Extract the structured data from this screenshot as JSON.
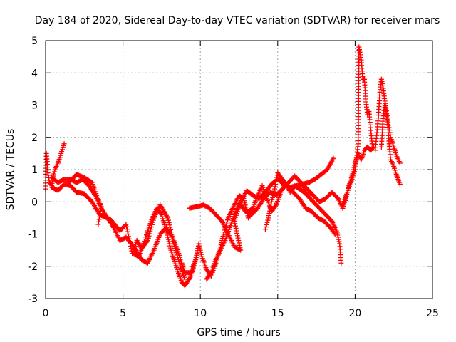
{
  "chart_data": {
    "type": "scatter",
    "title": "Day 184 of 2020, Sidereal Day-to-day VTEC variation (SDTVAR) for receiver mars",
    "xlabel": "GPS time / hours",
    "ylabel": "SDTVAR / TECUs",
    "xlim": [
      0,
      25
    ],
    "ylim": [
      -3,
      5
    ],
    "xticks": [
      "0",
      "5",
      "10",
      "15",
      "20",
      "25"
    ],
    "yticks": [
      "-3",
      "-2",
      "-1",
      "0",
      "1",
      "2",
      "3",
      "4",
      "5"
    ],
    "grid": true,
    "marker": "+",
    "color": "#ff0000",
    "series": [
      {
        "name": "mars",
        "tracks": [
          [
            [
              0.0,
              0.4
            ],
            [
              0.05,
              1.5
            ],
            [
              0.1,
              1.25
            ],
            [
              0.15,
              0.9
            ],
            [
              0.25,
              0.6
            ],
            [
              0.4,
              0.5
            ],
            [
              0.5,
              0.8
            ],
            [
              0.6,
              1.0
            ],
            [
              0.8,
              1.2
            ],
            [
              1.0,
              1.5
            ],
            [
              1.2,
              1.8
            ]
          ],
          [
            [
              0.4,
              0.45
            ],
            [
              0.8,
              0.35
            ],
            [
              1.2,
              0.55
            ],
            [
              1.6,
              0.5
            ],
            [
              2.0,
              0.3
            ],
            [
              2.5,
              0.25
            ],
            [
              3.0,
              0.0
            ],
            [
              3.5,
              -0.4
            ],
            [
              4.2,
              -0.55
            ],
            [
              4.8,
              -0.9
            ],
            [
              5.2,
              -0.7
            ],
            [
              5.6,
              -1.6
            ],
            [
              5.9,
              -1.2
            ],
            [
              6.2,
              -1.45
            ],
            [
              6.6,
              -1.2
            ],
            [
              7.0,
              -0.5
            ],
            [
              7.4,
              -0.1
            ],
            [
              7.9,
              -0.5
            ],
            [
              8.3,
              -1.3
            ],
            [
              8.7,
              -2.0
            ],
            [
              9.0,
              -2.4
            ]
          ],
          [
            [
              0.4,
              0.75
            ],
            [
              0.8,
              0.6
            ],
            [
              1.2,
              0.7
            ],
            [
              1.6,
              0.7
            ],
            [
              2.0,
              0.6
            ],
            [
              2.4,
              0.7
            ],
            [
              2.8,
              0.5
            ],
            [
              3.2,
              0.2
            ],
            [
              3.6,
              -0.2
            ],
            [
              4.0,
              -0.5
            ],
            [
              4.4,
              -0.8
            ],
            [
              4.8,
              -1.2
            ],
            [
              5.2,
              -1.1
            ],
            [
              5.7,
              -1.4
            ],
            [
              6.2,
              -1.8
            ],
            [
              6.6,
              -1.9
            ],
            [
              7.0,
              -1.5
            ],
            [
              7.4,
              -1.0
            ],
            [
              7.8,
              -0.8
            ],
            [
              8.2,
              -1.1
            ],
            [
              8.6,
              -1.6
            ],
            [
              9.0,
              -2.2
            ],
            [
              9.4,
              -2.2
            ],
            [
              9.8,
              -1.6
            ]
          ],
          [
            [
              1.5,
              0.6
            ],
            [
              2.0,
              0.85
            ],
            [
              2.5,
              0.75
            ],
            [
              3.0,
              0.6
            ],
            [
              3.3,
              0.2
            ],
            [
              3.6,
              -0.15
            ],
            [
              3.4,
              -0.7
            ]
          ],
          [
            [
              5.7,
              -1.6
            ],
            [
              6.0,
              -1.7
            ],
            [
              6.3,
              -1.35
            ],
            [
              6.6,
              -0.9
            ],
            [
              6.9,
              -0.5
            ],
            [
              7.2,
              -0.2
            ],
            [
              7.5,
              -0.4
            ],
            [
              7.8,
              -0.9
            ],
            [
              8.1,
              -1.5
            ],
            [
              8.5,
              -2.1
            ],
            [
              8.8,
              -2.5
            ],
            [
              9.0,
              -2.6
            ],
            [
              9.4,
              -2.3
            ],
            [
              9.7,
              -1.8
            ],
            [
              9.9,
              -1.3
            ],
            [
              10.1,
              -1.7
            ],
            [
              10.4,
              -2.1
            ],
            [
              10.7,
              -2.3
            ],
            [
              11.0,
              -1.9
            ],
            [
              11.3,
              -1.4
            ],
            [
              11.5,
              -1.0
            ],
            [
              11.8,
              -0.5
            ],
            [
              12.2,
              -0.1
            ],
            [
              12.5,
              0.2
            ],
            [
              12.8,
              0.1
            ],
            [
              13.1,
              -0.5
            ],
            [
              13.4,
              -0.3
            ]
          ],
          [
            [
              9.3,
              -0.2
            ],
            [
              9.8,
              -0.15
            ],
            [
              10.2,
              -0.1
            ],
            [
              10.6,
              -0.2
            ],
            [
              11.0,
              -0.4
            ],
            [
              11.4,
              -0.6
            ],
            [
              11.8,
              -1.0
            ],
            [
              12.2,
              -1.4
            ],
            [
              12.6,
              -1.5
            ],
            [
              12.2,
              -0.6
            ],
            [
              12.6,
              0.0
            ],
            [
              13.0,
              0.35
            ],
            [
              13.4,
              0.2
            ],
            [
              13.8,
              0.1
            ],
            [
              14.2,
              0.3
            ],
            [
              14.6,
              0.55
            ],
            [
              15.0,
              0.7
            ],
            [
              15.4,
              0.55
            ],
            [
              15.8,
              0.45
            ],
            [
              16.2,
              0.5
            ],
            [
              16.6,
              0.55
            ],
            [
              17.0,
              0.6
            ],
            [
              17.4,
              0.7
            ],
            [
              17.8,
              0.85
            ],
            [
              18.2,
              1.0
            ],
            [
              18.6,
              1.35
            ]
          ],
          [
            [
              10.4,
              -2.4
            ],
            [
              10.7,
              -2.2
            ],
            [
              11.0,
              -1.8
            ],
            [
              11.3,
              -1.5
            ],
            [
              11.6,
              -1.2
            ],
            [
              11.9,
              -0.8
            ],
            [
              12.2,
              -0.4
            ],
            [
              12.5,
              -0.1
            ],
            [
              12.8,
              -0.2
            ],
            [
              13.1,
              -0.3
            ],
            [
              13.4,
              -0.2
            ],
            [
              13.7,
              0.2
            ],
            [
              14.0,
              0.5
            ],
            [
              14.3,
              0.1
            ],
            [
              14.6,
              -0.3
            ],
            [
              14.9,
              -0.1
            ],
            [
              15.2,
              0.3
            ],
            [
              15.5,
              0.6
            ],
            [
              15.8,
              0.3
            ],
            [
              16.1,
              0.5
            ],
            [
              16.4,
              0.4
            ],
            [
              16.7,
              0.3
            ],
            [
              17.0,
              0.2
            ]
          ],
          [
            [
              12.5,
              0.0
            ],
            [
              12.9,
              -0.3
            ],
            [
              13.3,
              -0.4
            ],
            [
              13.7,
              -0.2
            ],
            [
              14.1,
              0.1
            ],
            [
              14.5,
              0.3
            ],
            [
              14.9,
              0.2
            ],
            [
              15.3,
              0.4
            ],
            [
              15.7,
              0.6
            ],
            [
              16.1,
              0.8
            ],
            [
              16.5,
              0.6
            ],
            [
              16.9,
              0.2
            ],
            [
              17.3,
              0.0
            ],
            [
              17.7,
              -0.2
            ],
            [
              18.1,
              -0.4
            ],
            [
              18.5,
              -0.6
            ],
            [
              18.8,
              -0.9
            ],
            [
              19.0,
              -1.3
            ],
            [
              19.1,
              -1.9
            ]
          ],
          [
            [
              14.2,
              -0.85
            ],
            [
              14.4,
              -0.5
            ],
            [
              14.6,
              0.0
            ],
            [
              14.8,
              0.4
            ],
            [
              15.0,
              0.9
            ],
            [
              15.3,
              0.7
            ],
            [
              15.6,
              0.5
            ],
            [
              16.0,
              0.3
            ],
            [
              16.4,
              0.1
            ],
            [
              16.8,
              -0.2
            ],
            [
              17.2,
              -0.3
            ],
            [
              17.6,
              -0.5
            ],
            [
              18.0,
              -0.6
            ],
            [
              18.4,
              -0.8
            ],
            [
              18.7,
              -1.0
            ]
          ],
          [
            [
              16.5,
              0.6
            ],
            [
              16.9,
              0.4
            ],
            [
              17.3,
              0.2
            ],
            [
              17.7,
              0.0
            ],
            [
              18.1,
              0.1
            ],
            [
              18.5,
              0.3
            ],
            [
              18.9,
              0.1
            ],
            [
              19.2,
              -0.2
            ],
            [
              19.4,
              0.1
            ],
            [
              19.6,
              0.5
            ],
            [
              19.8,
              0.8
            ],
            [
              20.0,
              1.2
            ],
            [
              20.2,
              1.5
            ],
            [
              20.4,
              1.3
            ],
            [
              20.6,
              1.6
            ],
            [
              20.8,
              1.7
            ],
            [
              21.0,
              1.6
            ],
            [
              21.2,
              1.7
            ]
          ],
          [
            [
              19.2,
              -0.1
            ],
            [
              19.5,
              0.3
            ],
            [
              19.8,
              0.7
            ],
            [
              20.0,
              1.0
            ],
            [
              20.2,
              1.8
            ],
            [
              20.25,
              4.8
            ],
            [
              20.4,
              4.4
            ],
            [
              20.5,
              3.8
            ],
            [
              20.6,
              3.8
            ],
            [
              20.7,
              3.1
            ],
            [
              20.8,
              2.7
            ],
            [
              20.9,
              2.8
            ],
            [
              21.0,
              2.3
            ],
            [
              21.1,
              1.8
            ]
          ],
          [
            [
              21.3,
              1.6
            ],
            [
              21.5,
              2.6
            ],
            [
              21.6,
              3.4
            ],
            [
              21.7,
              3.8
            ],
            [
              21.8,
              3.6
            ],
            [
              21.9,
              3.2
            ],
            [
              22.0,
              2.9
            ],
            [
              22.1,
              2.6
            ],
            [
              22.2,
              2.3
            ],
            [
              22.3,
              2.0
            ],
            [
              22.5,
              1.7
            ],
            [
              22.7,
              1.4
            ],
            [
              22.9,
              1.2
            ]
          ],
          [
            [
              21.7,
              1.7
            ],
            [
              21.8,
              2.5
            ],
            [
              21.9,
              3.0
            ],
            [
              22.0,
              2.8
            ],
            [
              22.1,
              2.4
            ],
            [
              22.2,
              1.8
            ],
            [
              22.3,
              1.3
            ],
            [
              22.5,
              1.1
            ],
            [
              22.7,
              0.8
            ],
            [
              22.9,
              0.55
            ]
          ]
        ]
      }
    ]
  }
}
